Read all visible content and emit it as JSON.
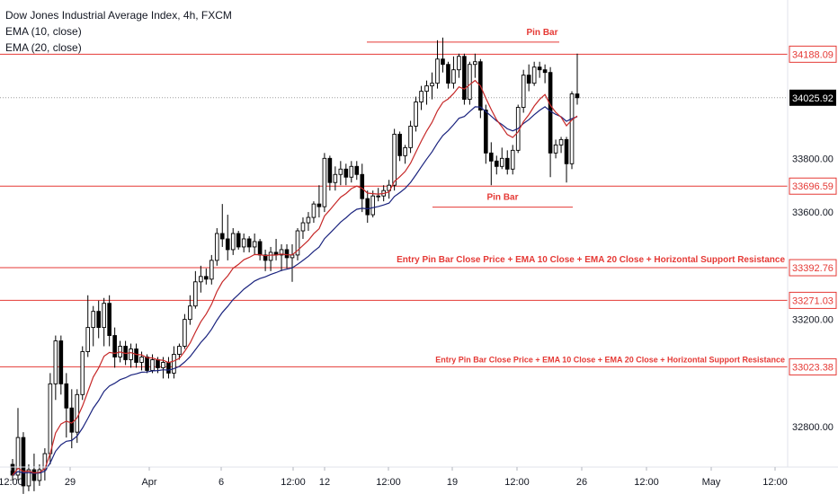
{
  "legend": {
    "title": "Dow Jones Industrial Average Index, 4h, FXCM",
    "ema10": "EMA (10, close)",
    "ema20": "EMA (20, close)"
  },
  "colors": {
    "level_line": "#e53935",
    "ema10": "#c62828",
    "ema20": "#1a237e",
    "candle": "#000000",
    "current_tag": "#000000"
  },
  "chart_data": {
    "type": "candlestick",
    "ylim": [
      32650,
      34390
    ],
    "y_ticks": [
      {
        "value": 33800,
        "label": "33800.00"
      },
      {
        "value": 33600,
        "label": "33600.00"
      },
      {
        "value": 33200,
        "label": "33200.00"
      },
      {
        "value": 32800,
        "label": "32800.00"
      }
    ],
    "x_ticks": [
      "12:00",
      "29",
      "Apr",
      "6",
      "12:00",
      "12",
      "12:00",
      "19",
      "12:00",
      "26",
      "12:00",
      "May",
      "12:00"
    ],
    "levels": [
      {
        "label": "34188.09",
        "value": 34188.09
      },
      {
        "label": "33696.59",
        "value": 33696.59
      },
      {
        "label": "33392.76",
        "value": 33392.76
      },
      {
        "label": "33271.03",
        "value": 33271.03
      },
      {
        "label": "33023.38",
        "value": 33023.38
      }
    ],
    "current_price": {
      "label": "34025.92",
      "value": 34025.92
    },
    "annotations": [
      {
        "text": "Pin Bar",
        "value": 34270
      },
      {
        "text": "Pin Bar",
        "value": 33655
      },
      {
        "text": "Entry Pin Bar Close Price + EMA 10 Close + EMA 20 Close + Horizontal Support Resistance",
        "value": 33392.76
      },
      {
        "text": "Entry Pin Bar Close Price + EMA 10 Close + EMA 20 Close + Horizontal Support Resistance",
        "value": 33023.38
      }
    ],
    "candles": [
      {
        "o": 32660,
        "h": 32680,
        "l": 32600,
        "c": 32620
      },
      {
        "o": 32620,
        "h": 32870,
        "l": 32600,
        "c": 32760
      },
      {
        "o": 32760,
        "h": 32780,
        "l": 32550,
        "c": 32580
      },
      {
        "o": 32580,
        "h": 32660,
        "l": 32560,
        "c": 32640
      },
      {
        "o": 32640,
        "h": 32700,
        "l": 32560,
        "c": 32600
      },
      {
        "o": 32600,
        "h": 32660,
        "l": 32580,
        "c": 32640
      },
      {
        "o": 32640,
        "h": 32720,
        "l": 32600,
        "c": 32700
      },
      {
        "o": 32700,
        "h": 33000,
        "l": 32660,
        "c": 32960
      },
      {
        "o": 32960,
        "h": 33140,
        "l": 32900,
        "c": 33120
      },
      {
        "o": 33120,
        "h": 33140,
        "l": 32920,
        "c": 32960
      },
      {
        "o": 32960,
        "h": 33000,
        "l": 32760,
        "c": 32870
      },
      {
        "o": 32870,
        "h": 32940,
        "l": 32720,
        "c": 32780
      },
      {
        "o": 32780,
        "h": 32940,
        "l": 32740,
        "c": 32920
      },
      {
        "o": 32920,
        "h": 33100,
        "l": 32900,
        "c": 33080
      },
      {
        "o": 33080,
        "h": 33290,
        "l": 33060,
        "c": 33170
      },
      {
        "o": 33170,
        "h": 33250,
        "l": 33100,
        "c": 33230
      },
      {
        "o": 33230,
        "h": 33270,
        "l": 33130,
        "c": 33170
      },
      {
        "o": 33170,
        "h": 33280,
        "l": 33100,
        "c": 33260
      },
      {
        "o": 33260,
        "h": 33290,
        "l": 33100,
        "c": 33140
      },
      {
        "o": 33140,
        "h": 33170,
        "l": 33020,
        "c": 33060
      },
      {
        "o": 33060,
        "h": 33120,
        "l": 33040,
        "c": 33100
      },
      {
        "o": 33100,
        "h": 33120,
        "l": 33030,
        "c": 33050
      },
      {
        "o": 33050,
        "h": 33110,
        "l": 33020,
        "c": 33090
      },
      {
        "o": 33090,
        "h": 33110,
        "l": 33020,
        "c": 33040
      },
      {
        "o": 33040,
        "h": 33080,
        "l": 33010,
        "c": 33060
      },
      {
        "o": 33060,
        "h": 33070,
        "l": 33000,
        "c": 33010
      },
      {
        "o": 33010,
        "h": 33070,
        "l": 33000,
        "c": 33050
      },
      {
        "o": 33050,
        "h": 33060,
        "l": 33000,
        "c": 33020
      },
      {
        "o": 33020,
        "h": 33060,
        "l": 32980,
        "c": 33040
      },
      {
        "o": 33040,
        "h": 33060,
        "l": 32980,
        "c": 33000
      },
      {
        "o": 33000,
        "h": 33100,
        "l": 32980,
        "c": 33070
      },
      {
        "o": 33070,
        "h": 33110,
        "l": 33050,
        "c": 33100
      },
      {
        "o": 33100,
        "h": 33220,
        "l": 33090,
        "c": 33200
      },
      {
        "o": 33200,
        "h": 33290,
        "l": 33180,
        "c": 33250
      },
      {
        "o": 33250,
        "h": 33380,
        "l": 33240,
        "c": 33340
      },
      {
        "o": 33340,
        "h": 33400,
        "l": 33300,
        "c": 33360
      },
      {
        "o": 33360,
        "h": 33390,
        "l": 33330,
        "c": 33350
      },
      {
        "o": 33350,
        "h": 33440,
        "l": 33330,
        "c": 33420
      },
      {
        "o": 33420,
        "h": 33540,
        "l": 33400,
        "c": 33520
      },
      {
        "o": 33520,
        "h": 33630,
        "l": 33470,
        "c": 33500
      },
      {
        "o": 33500,
        "h": 33590,
        "l": 33420,
        "c": 33460
      },
      {
        "o": 33460,
        "h": 33540,
        "l": 33440,
        "c": 33520
      },
      {
        "o": 33520,
        "h": 33530,
        "l": 33460,
        "c": 33470
      },
      {
        "o": 33470,
        "h": 33520,
        "l": 33450,
        "c": 33500
      },
      {
        "o": 33500,
        "h": 33510,
        "l": 33450,
        "c": 33470
      },
      {
        "o": 33470,
        "h": 33520,
        "l": 33440,
        "c": 33490
      },
      {
        "o": 33490,
        "h": 33500,
        "l": 33420,
        "c": 33440
      },
      {
        "o": 33440,
        "h": 33460,
        "l": 33380,
        "c": 33420
      },
      {
        "o": 33420,
        "h": 33470,
        "l": 33380,
        "c": 33450
      },
      {
        "o": 33450,
        "h": 33500,
        "l": 33420,
        "c": 33440
      },
      {
        "o": 33440,
        "h": 33480,
        "l": 33380,
        "c": 33460
      },
      {
        "o": 33460,
        "h": 33480,
        "l": 33390,
        "c": 33430
      },
      {
        "o": 33430,
        "h": 33480,
        "l": 33340,
        "c": 33440
      },
      {
        "o": 33440,
        "h": 33540,
        "l": 33420,
        "c": 33530
      },
      {
        "o": 33530,
        "h": 33580,
        "l": 33500,
        "c": 33560
      },
      {
        "o": 33560,
        "h": 33600,
        "l": 33530,
        "c": 33580
      },
      {
        "o": 33580,
        "h": 33640,
        "l": 33560,
        "c": 33630
      },
      {
        "o": 33630,
        "h": 33700,
        "l": 33580,
        "c": 33620
      },
      {
        "o": 33620,
        "h": 33820,
        "l": 33600,
        "c": 33800
      },
      {
        "o": 33800,
        "h": 33810,
        "l": 33680,
        "c": 33710
      },
      {
        "o": 33710,
        "h": 33770,
        "l": 33680,
        "c": 33740
      },
      {
        "o": 33740,
        "h": 33790,
        "l": 33700,
        "c": 33760
      },
      {
        "o": 33760,
        "h": 33780,
        "l": 33700,
        "c": 33730
      },
      {
        "o": 33730,
        "h": 33790,
        "l": 33710,
        "c": 33770
      },
      {
        "o": 33770,
        "h": 33790,
        "l": 33720,
        "c": 33740
      },
      {
        "o": 33740,
        "h": 33780,
        "l": 33600,
        "c": 33650
      },
      {
        "o": 33650,
        "h": 33680,
        "l": 33560,
        "c": 33590
      },
      {
        "o": 33590,
        "h": 33680,
        "l": 33580,
        "c": 33660
      },
      {
        "o": 33660,
        "h": 33690,
        "l": 33640,
        "c": 33660
      },
      {
        "o": 33660,
        "h": 33700,
        "l": 33640,
        "c": 33680
      },
      {
        "o": 33680,
        "h": 33720,
        "l": 33650,
        "c": 33700
      },
      {
        "o": 33700,
        "h": 33910,
        "l": 33680,
        "c": 33890
      },
      {
        "o": 33890,
        "h": 33900,
        "l": 33790,
        "c": 33810
      },
      {
        "o": 33810,
        "h": 33850,
        "l": 33780,
        "c": 33840
      },
      {
        "o": 33840,
        "h": 33940,
        "l": 33820,
        "c": 33920
      },
      {
        "o": 33920,
        "h": 34030,
        "l": 33900,
        "c": 34010
      },
      {
        "o": 34010,
        "h": 34070,
        "l": 33980,
        "c": 34050
      },
      {
        "o": 34050,
        "h": 34090,
        "l": 34000,
        "c": 34070
      },
      {
        "o": 34070,
        "h": 34120,
        "l": 34020,
        "c": 34080
      },
      {
        "o": 34080,
        "h": 34240,
        "l": 34060,
        "c": 34170
      },
      {
        "o": 34170,
        "h": 34250,
        "l": 34120,
        "c": 34150
      },
      {
        "o": 34150,
        "h": 34160,
        "l": 34060,
        "c": 34080
      },
      {
        "o": 34080,
        "h": 34180,
        "l": 34060,
        "c": 34130
      },
      {
        "o": 34130,
        "h": 34190,
        "l": 34100,
        "c": 34180
      },
      {
        "o": 34180,
        "h": 34190,
        "l": 34000,
        "c": 34020
      },
      {
        "o": 34020,
        "h": 34160,
        "l": 34000,
        "c": 34150
      },
      {
        "o": 34150,
        "h": 34190,
        "l": 34100,
        "c": 34160
      },
      {
        "o": 34160,
        "h": 34170,
        "l": 33950,
        "c": 33980
      },
      {
        "o": 33980,
        "h": 34000,
        "l": 33780,
        "c": 33820
      },
      {
        "o": 33820,
        "h": 33860,
        "l": 33700,
        "c": 33790
      },
      {
        "o": 33790,
        "h": 33810,
        "l": 33740,
        "c": 33770
      },
      {
        "o": 33770,
        "h": 33840,
        "l": 33760,
        "c": 33800
      },
      {
        "o": 33800,
        "h": 33830,
        "l": 33740,
        "c": 33760
      },
      {
        "o": 33760,
        "h": 33850,
        "l": 33740,
        "c": 33830
      },
      {
        "o": 33830,
        "h": 34000,
        "l": 33820,
        "c": 33990
      },
      {
        "o": 33990,
        "h": 34130,
        "l": 33970,
        "c": 34110
      },
      {
        "o": 34110,
        "h": 34150,
        "l": 34050,
        "c": 34080
      },
      {
        "o": 34080,
        "h": 34160,
        "l": 34070,
        "c": 34140
      },
      {
        "o": 34140,
        "h": 34160,
        "l": 34100,
        "c": 34130
      },
      {
        "o": 34130,
        "h": 34150,
        "l": 34080,
        "c": 34120
      },
      {
        "o": 34120,
        "h": 34140,
        "l": 33730,
        "c": 33820
      },
      {
        "o": 33820,
        "h": 33870,
        "l": 33800,
        "c": 33850
      },
      {
        "o": 33850,
        "h": 33880,
        "l": 33820,
        "c": 33870
      },
      {
        "o": 33870,
        "h": 33880,
        "l": 33710,
        "c": 33780
      },
      {
        "o": 33780,
        "h": 34050,
        "l": 33760,
        "c": 34040
      },
      {
        "o": 34040,
        "h": 34190,
        "l": 34000,
        "c": 34025.92
      }
    ]
  }
}
